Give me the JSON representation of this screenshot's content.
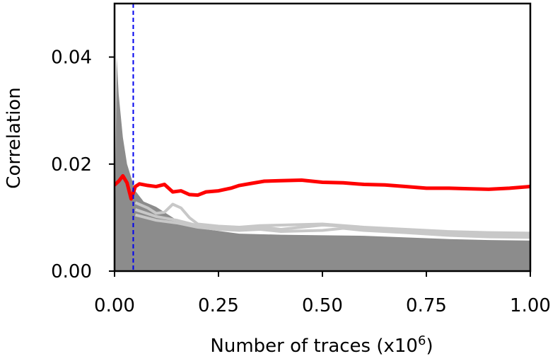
{
  "chart_data": {
    "type": "line",
    "title": "",
    "xlabel": "Number of traces (x10",
    "xlabel_superscript": "6",
    "xlabel_suffix": ")",
    "ylabel": "Correlation",
    "xlim": [
      0.0,
      1.0
    ],
    "ylim": [
      0.0,
      0.05
    ],
    "x_ticks": [
      0.0,
      0.25,
      0.5,
      0.75,
      1.0
    ],
    "x_tick_labels": [
      "0.00",
      "0.25",
      "0.50",
      "0.75",
      "1.00"
    ],
    "y_ticks": [
      0.0,
      0.02,
      0.04
    ],
    "y_tick_labels": [
      "0.00",
      "0.02",
      "0.04"
    ],
    "grid": false,
    "legend": "none",
    "vertical_marker": {
      "x": 0.045,
      "style": "dashed",
      "color": "#0000ee"
    },
    "colors": {
      "correct_key": "#ff0000",
      "wrong_keys": "#8c8c8c",
      "wrong_keys_light": "#c8c8c8",
      "marker": "#0000ee"
    },
    "series": [
      {
        "role": "correct-key",
        "x": [
          0.0,
          0.01,
          0.02,
          0.03,
          0.04,
          0.05,
          0.06,
          0.08,
          0.1,
          0.12,
          0.14,
          0.16,
          0.18,
          0.2,
          0.22,
          0.25,
          0.28,
          0.3,
          0.33,
          0.36,
          0.4,
          0.45,
          0.5,
          0.55,
          0.6,
          0.65,
          0.7,
          0.75,
          0.8,
          0.85,
          0.9,
          0.95,
          1.0
        ],
        "values": [
          0.0161,
          0.0168,
          0.0178,
          0.0165,
          0.0135,
          0.0158,
          0.0163,
          0.016,
          0.0158,
          0.0162,
          0.0148,
          0.015,
          0.0143,
          0.0142,
          0.0148,
          0.015,
          0.0155,
          0.016,
          0.0164,
          0.0168,
          0.0169,
          0.017,
          0.0166,
          0.0165,
          0.0162,
          0.0161,
          0.0158,
          0.0155,
          0.0155,
          0.0154,
          0.0153,
          0.0155,
          0.0158
        ]
      },
      {
        "role": "wrong-keys-envelope",
        "x": [
          0.0,
          0.005,
          0.01,
          0.02,
          0.03,
          0.05,
          0.07,
          0.1,
          0.15,
          0.2,
          0.25,
          0.3,
          0.4,
          0.5,
          0.6,
          0.7,
          0.8,
          0.9,
          1.0
        ],
        "values": [
          0.0,
          0.04,
          0.033,
          0.025,
          0.02,
          0.015,
          0.013,
          0.012,
          0.0095,
          0.008,
          0.0075,
          0.007,
          0.0068,
          0.0067,
          0.0066,
          0.0063,
          0.006,
          0.0058,
          0.0057
        ]
      },
      {
        "role": "wrong-key-light-1",
        "x": [
          0.05,
          0.08,
          0.1,
          0.12,
          0.14,
          0.16,
          0.18,
          0.2,
          0.25,
          0.3,
          0.35,
          0.4,
          0.5,
          0.6,
          0.7,
          0.8,
          0.9,
          1.0
        ],
        "values": [
          0.0128,
          0.0118,
          0.0108,
          0.011,
          0.0125,
          0.0118,
          0.01,
          0.0088,
          0.0084,
          0.0082,
          0.0085,
          0.0086,
          0.0088,
          0.0082,
          0.0078,
          0.0074,
          0.0072,
          0.0071
        ]
      },
      {
        "role": "wrong-key-light-2",
        "x": [
          0.05,
          0.1,
          0.15,
          0.2,
          0.25,
          0.3,
          0.35,
          0.4,
          0.45,
          0.5,
          0.55,
          0.6,
          0.7,
          0.8,
          0.9,
          1.0
        ],
        "values": [
          0.0115,
          0.0102,
          0.0095,
          0.0085,
          0.0082,
          0.008,
          0.0083,
          0.0078,
          0.0082,
          0.0086,
          0.0084,
          0.0079,
          0.0075,
          0.0071,
          0.0068,
          0.0067
        ]
      },
      {
        "role": "wrong-key-light-3",
        "x": [
          0.05,
          0.1,
          0.15,
          0.2,
          0.25,
          0.3,
          0.35,
          0.4,
          0.5,
          0.55,
          0.6,
          0.7,
          0.8,
          0.9,
          1.0
        ],
        "values": [
          0.0105,
          0.0095,
          0.009,
          0.0082,
          0.0078,
          0.0076,
          0.0078,
          0.0074,
          0.0076,
          0.008,
          0.0076,
          0.0072,
          0.0067,
          0.0064,
          0.0063
        ]
      }
    ]
  }
}
